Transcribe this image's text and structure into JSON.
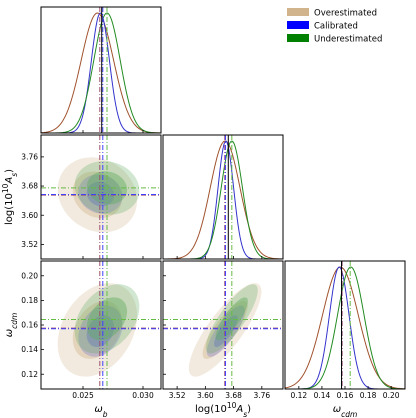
{
  "chart_data": {
    "type": "corner",
    "parameters": [
      {
        "key": "omega_b",
        "label_main": "ω",
        "label_sub": "b",
        "range": [
          0.0215,
          0.0315
        ],
        "ticks": [
          "0.025",
          "0.030"
        ],
        "tick_values": [
          0.025,
          0.03
        ]
      },
      {
        "key": "log10As",
        "label_main": "log(10",
        "label_sup": "10",
        "label_sub": "s",
        "range": [
          3.48,
          3.82
        ],
        "ticks": [
          "3.52",
          "3.60",
          "3.68",
          "3.76"
        ],
        "tick_values": [
          3.52,
          3.6,
          3.68,
          3.76
        ]
      },
      {
        "key": "omega_cdm",
        "label_main": "ω",
        "label_sub": "cdm",
        "range": [
          0.108,
          0.212
        ],
        "ticks": [
          "0.12",
          "0.14",
          "0.16",
          "0.18",
          "0.20"
        ],
        "tick_values": [
          0.12,
          0.14,
          0.16,
          0.18,
          0.2
        ]
      }
    ],
    "x_axis_labels": [
      "ω_b",
      "log(10^10 A_s)",
      "ω_cdm"
    ],
    "y_axis_labels": [
      "log(10^10 A_s)",
      "ω_cdm"
    ],
    "legend": {
      "placement": "top-right",
      "entries": [
        {
          "label": "Overestimated",
          "color": "#d2b48c"
        },
        {
          "label": "Calibrated",
          "color": "#0000ff"
        },
        {
          "label": "Underestimated",
          "color": "#008000"
        }
      ]
    },
    "true_values": {
      "omega_b": 0.02656,
      "log10As": 3.665,
      "omega_cdm": 0.157
    },
    "series": [
      {
        "name": "Overestimated",
        "line_color": "#a0522d",
        "fill_color": "#d2b48c",
        "mean": {
          "omega_b": 0.0262,
          "log10As": 3.656,
          "omega_cdm": 0.156
        },
        "sigma": {
          "omega_b": 0.00135,
          "log10As": 0.042,
          "omega_cdm": 0.0155
        },
        "corr": {
          "b_A": -0.15,
          "b_c": 0.3,
          "A_c": 0.82
        }
      },
      {
        "name": "Calibrated",
        "line_color": "#3333cc",
        "fill_color": "#6666dd",
        "mean": {
          "omega_b": 0.02645,
          "log10As": 3.658,
          "omega_cdm": 0.155
        },
        "sigma": {
          "omega_b": 0.00075,
          "log10As": 0.022,
          "omega_cdm": 0.0085
        },
        "corr": {
          "b_A": -0.1,
          "b_c": 0.25,
          "A_c": 0.8
        }
      },
      {
        "name": "Underestimated",
        "line_color": "#228b22",
        "fill_color": "#5aaa5a",
        "mean": {
          "omega_b": 0.027,
          "log10As": 3.675,
          "omega_cdm": 0.165
        },
        "sigma": {
          "omega_b": 0.0011,
          "log10As": 0.03,
          "omega_cdm": 0.0115
        },
        "corr": {
          "b_A": -0.1,
          "b_c": 0.35,
          "A_c": 0.82
        }
      }
    ],
    "marker_lines": [
      {
        "series": "Overestimated",
        "color": "#a05070",
        "style": "dashdot",
        "values": {
          "omega_b": 0.0264,
          "log10As": 3.655,
          "omega_cdm": 0.1575
        }
      },
      {
        "series": "Calibrated",
        "color": "#4040ff",
        "style": "dashdot",
        "values": {
          "omega_b": 0.02665,
          "log10As": 3.657,
          "omega_cdm": 0.157
        }
      },
      {
        "series": "Underestimated",
        "color": "#66bb44",
        "style": "dashdot",
        "values": {
          "omega_b": 0.027,
          "log10As": 3.675,
          "omega_cdm": 0.1645
        }
      }
    ]
  }
}
